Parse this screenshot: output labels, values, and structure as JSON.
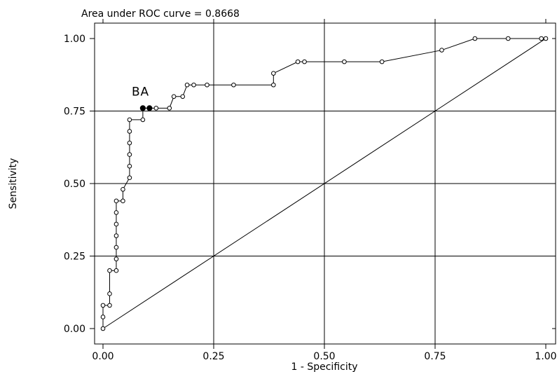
{
  "chart_data": {
    "type": "line",
    "title": "Area under ROC curve = 0.8668",
    "xlabel": "1 - Specificity",
    "ylabel": "Sensitivity",
    "xlim": [
      0,
      1
    ],
    "ylim": [
      0,
      1
    ],
    "x_ticks": [
      0,
      0.25,
      0.5,
      0.75,
      1
    ],
    "x_tick_labels": [
      "0.00",
      "0.25",
      "0.50",
      "0.75",
      "1.00"
    ],
    "y_ticks": [
      0,
      0.25,
      0.5,
      0.75,
      1
    ],
    "y_tick_labels": [
      "0.00",
      "0.25",
      "0.50",
      "0.75",
      "1.00"
    ],
    "grid": true,
    "series": [
      {
        "x": [
          0,
          0,
          0,
          0.015,
          0.015,
          0.015,
          0.03,
          0.03,
          0.03,
          0.03,
          0.03,
          0.03,
          0.03,
          0.045,
          0.045,
          0.06,
          0.06,
          0.06,
          0.06,
          0.06,
          0.06,
          0.09,
          0.09,
          0.105,
          0.12,
          0.15,
          0.16,
          0.18,
          0.19,
          0.205,
          0.235,
          0.295,
          0.385,
          0.385,
          0.44,
          0.455,
          0.545,
          0.63,
          0.765,
          0.84,
          0.915,
          0.99,
          1.0
        ],
        "y": [
          0,
          0.04,
          0.08,
          0.08,
          0.12,
          0.2,
          0.2,
          0.24,
          0.28,
          0.32,
          0.36,
          0.4,
          0.44,
          0.44,
          0.48,
          0.52,
          0.56,
          0.6,
          0.64,
          0.68,
          0.72,
          0.72,
          0.76,
          0.76,
          0.76,
          0.76,
          0.8,
          0.8,
          0.84,
          0.84,
          0.84,
          0.84,
          0.84,
          0.88,
          0.92,
          0.92,
          0.92,
          0.92,
          0.96,
          1.0,
          1.0,
          1.0,
          1.0
        ]
      },
      {
        "x": [
          0,
          1
        ],
        "y": [
          0,
          1
        ]
      }
    ],
    "highlighted_points": [
      {
        "label": "B",
        "x": 0.09,
        "y": 0.76
      },
      {
        "label": "A",
        "x": 0.105,
        "y": 0.76
      }
    ]
  }
}
